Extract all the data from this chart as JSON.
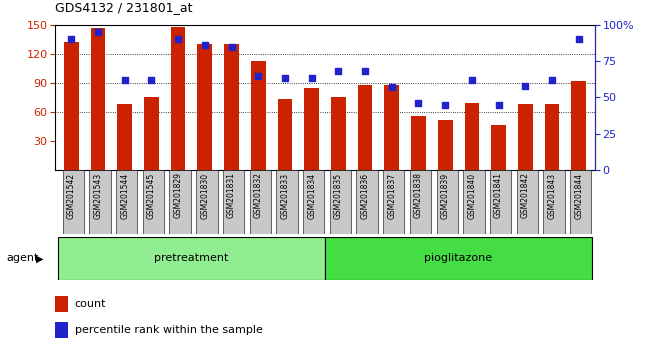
{
  "title": "GDS4132 / 231801_at",
  "samples": [
    "GSM201542",
    "GSM201543",
    "GSM201544",
    "GSM201545",
    "GSM201829",
    "GSM201830",
    "GSM201831",
    "GSM201832",
    "GSM201833",
    "GSM201834",
    "GSM201835",
    "GSM201836",
    "GSM201837",
    "GSM201838",
    "GSM201839",
    "GSM201840",
    "GSM201841",
    "GSM201842",
    "GSM201843",
    "GSM201844"
  ],
  "counts": [
    132,
    147,
    68,
    75,
    148,
    130,
    130,
    113,
    73,
    85,
    75,
    88,
    88,
    56,
    52,
    69,
    46,
    68,
    68,
    92
  ],
  "percentile_ranks": [
    90,
    95,
    62,
    62,
    90,
    86,
    85,
    65,
    63,
    63,
    68,
    68,
    57,
    46,
    45,
    62,
    45,
    58,
    62,
    90
  ],
  "bar_color": "#cc2200",
  "dot_color": "#2222cc",
  "ylim_left": [
    0,
    150
  ],
  "ylim_right": [
    0,
    100
  ],
  "yticks_left": [
    30,
    60,
    90,
    120,
    150
  ],
  "yticks_right": [
    0,
    25,
    50,
    75,
    100
  ],
  "ytick_right_labels": [
    "0",
    "25",
    "50",
    "75",
    "100%"
  ],
  "grid_vals": [
    60,
    90,
    120
  ],
  "bar_width": 0.55,
  "legend_count_label": "count",
  "legend_pct_label": "percentile rank within the sample",
  "pretreatment_color": "#90ee90",
  "pioglitazone_color": "#44dd44",
  "xtick_bg_color": "#c8c8c8",
  "plot_bg_color": "#ffffff",
  "group_n": 10
}
